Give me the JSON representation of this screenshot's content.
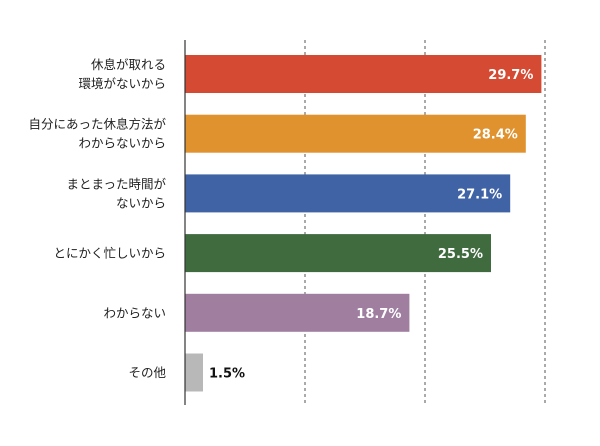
{
  "chart_data": {
    "type": "bar",
    "orientation": "horizontal",
    "categories": [
      [
        "休息が取れる",
        "環境がないから"
      ],
      [
        "自分にあった休息方法が",
        "わからないから"
      ],
      [
        "まとまった時間が",
        "ないから"
      ],
      [
        "とにかく忙しいから"
      ],
      [
        "わからない"
      ],
      [
        "その他"
      ]
    ],
    "values": [
      29.7,
      28.4,
      27.1,
      25.5,
      18.7,
      1.5
    ],
    "data_labels": [
      "29.7%",
      "28.4%",
      "27.1%",
      "25.5%",
      "18.7%",
      "1.5%"
    ],
    "colors": [
      "#d44a33",
      "#e0922f",
      "#3f63a5",
      "#3f6b3f",
      "#9f7ea0",
      "#b8b8b8"
    ],
    "xlim": [
      0,
      30
    ],
    "gridlines": [
      10,
      20,
      30
    ],
    "grid": "dashed vertical",
    "title": "",
    "xlabel": "",
    "ylabel": ""
  }
}
